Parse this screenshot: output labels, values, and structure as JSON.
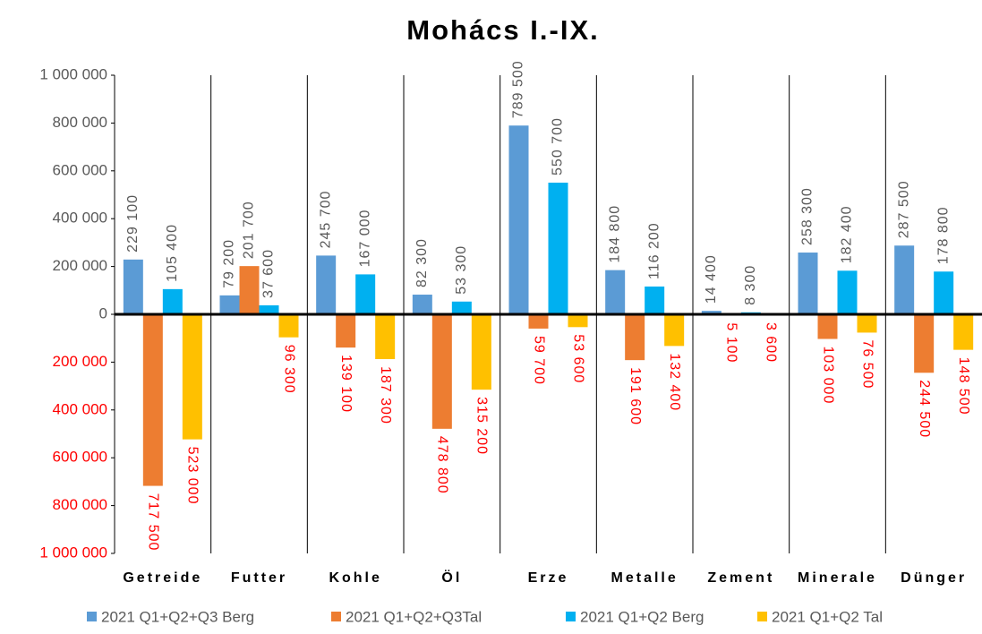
{
  "chart_data": {
    "type": "bar",
    "title": "Mohács I.-IX.",
    "categories": [
      "Getreide",
      "Futter",
      "Kohle",
      "Öl",
      "Erze",
      "Metalle",
      "Zement",
      "Minerale",
      "Dünger"
    ],
    "series": [
      {
        "name": "2021 Q1+Q2+Q3 Berg",
        "color": "#5b9bd5",
        "values": [
          229100,
          79200,
          245700,
          82300,
          789500,
          184800,
          14400,
          258300,
          287500
        ],
        "value_labels": [
          "229 100",
          "79 200",
          "245 700",
          "82 300",
          "789 500",
          "184 800",
          "14 400",
          "258 300",
          "287 500"
        ]
      },
      {
        "name": "2021 Q1+Q2+Q3Tal",
        "color": "#ed7d31",
        "values": [
          -717500,
          201700,
          -139100,
          -478800,
          -59700,
          -191600,
          -5100,
          -103000,
          -244500
        ],
        "value_labels": [
          "717 500",
          "201 700",
          "139 100",
          "478 800",
          "59 700",
          "191 600",
          "5 100",
          "103 000",
          "244 500"
        ]
      },
      {
        "name": "2021 Q1+Q2 Berg",
        "color": "#00b0f0",
        "values": [
          105400,
          37600,
          167000,
          53300,
          550700,
          116200,
          8300,
          182400,
          178800
        ],
        "value_labels": [
          "105 400",
          "37 600",
          "167 000",
          "53 300",
          "550 700",
          "116 200",
          "8 300",
          "182 400",
          "178 800"
        ]
      },
      {
        "name": "2021 Q1+Q2 Tal",
        "color": "#ffc000",
        "values": [
          -523000,
          -96300,
          -187300,
          -315200,
          -53600,
          -132400,
          -3600,
          -76500,
          -148500
        ],
        "value_labels": [
          "523 000",
          "96 300",
          "187 300",
          "315 200",
          "53 600",
          "132 400",
          "3 600",
          "76 500",
          "148 500"
        ]
      }
    ],
    "ylim": [
      -1000000,
      1000000
    ],
    "yticks": [
      {
        "value": 1000000,
        "label": "1 000 000"
      },
      {
        "value": 800000,
        "label": "800 000"
      },
      {
        "value": 600000,
        "label": "600 000"
      },
      {
        "value": 400000,
        "label": "400 000"
      },
      {
        "value": 200000,
        "label": "200 000"
      },
      0,
      {
        "value": -200000,
        "label": "200 000"
      },
      {
        "value": -400000,
        "label": "400 000"
      },
      {
        "value": -600000,
        "label": "600 000"
      },
      {
        "value": -800000,
        "label": "800 000"
      },
      {
        "value": -1000000,
        "label": "1 000 000"
      }
    ],
    "legend": "bottom"
  }
}
